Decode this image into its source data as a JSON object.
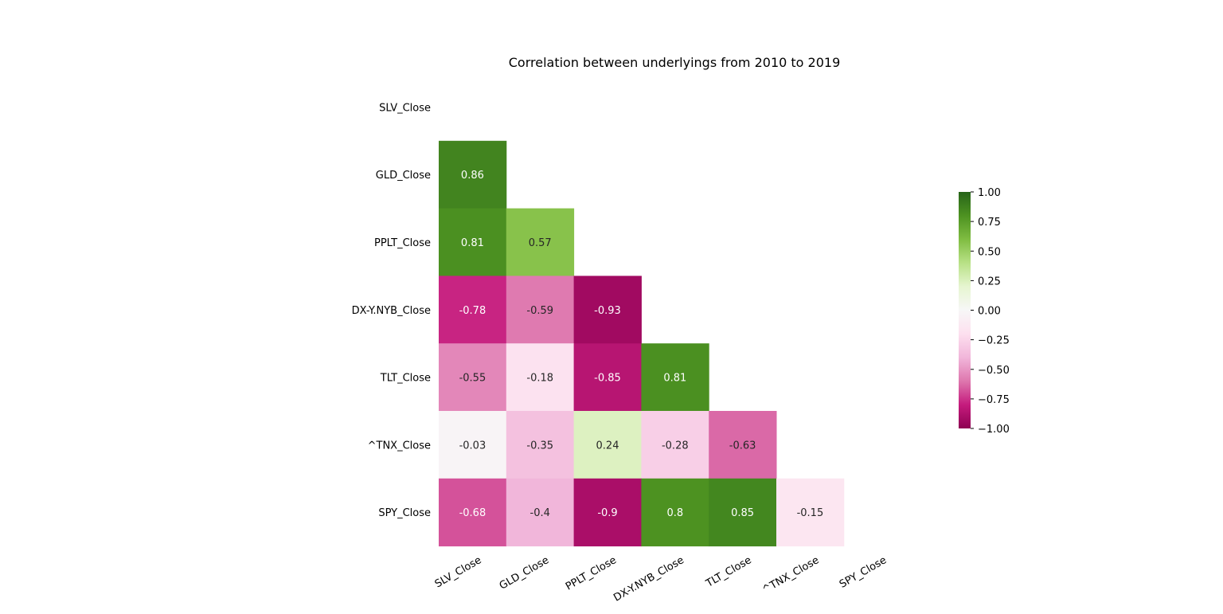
{
  "chart_data": {
    "type": "heatmap",
    "title": "Correlation between underlyings from 2010 to 2019",
    "xlabel": "",
    "ylabel": "",
    "labels": [
      "SLV_Close",
      "GLD_Close",
      "PPLT_Close",
      "DX-Y.NYB_Close",
      "TLT_Close",
      "^TNX_Close",
      "SPY_Close"
    ],
    "mask": "lower-triangle",
    "cells": [
      {
        "row": 1,
        "col": 0,
        "value": 0.86
      },
      {
        "row": 2,
        "col": 0,
        "value": 0.81
      },
      {
        "row": 2,
        "col": 1,
        "value": 0.57
      },
      {
        "row": 3,
        "col": 0,
        "value": -0.78
      },
      {
        "row": 3,
        "col": 1,
        "value": -0.59
      },
      {
        "row": 3,
        "col": 2,
        "value": -0.93
      },
      {
        "row": 4,
        "col": 0,
        "value": -0.55
      },
      {
        "row": 4,
        "col": 1,
        "value": -0.18
      },
      {
        "row": 4,
        "col": 2,
        "value": -0.85
      },
      {
        "row": 4,
        "col": 3,
        "value": 0.81
      },
      {
        "row": 5,
        "col": 0,
        "value": -0.03
      },
      {
        "row": 5,
        "col": 1,
        "value": -0.35
      },
      {
        "row": 5,
        "col": 2,
        "value": 0.24
      },
      {
        "row": 5,
        "col": 3,
        "value": -0.28
      },
      {
        "row": 5,
        "col": 4,
        "value": -0.63
      },
      {
        "row": 6,
        "col": 0,
        "value": -0.68
      },
      {
        "row": 6,
        "col": 1,
        "value": -0.4
      },
      {
        "row": 6,
        "col": 2,
        "value": -0.9
      },
      {
        "row": 6,
        "col": 3,
        "value": 0.8
      },
      {
        "row": 6,
        "col": 4,
        "value": 0.85
      },
      {
        "row": 6,
        "col": 5,
        "value": -0.15
      }
    ],
    "colormap": "PiYG",
    "vmin": -1,
    "vmax": 1,
    "colorbar": {
      "ticks": [
        1.0,
        0.75,
        0.5,
        0.25,
        0.0,
        -0.25,
        -0.5,
        -0.75,
        -1.0
      ],
      "tick_labels": [
        "1.00",
        "0.75",
        "0.50",
        "0.25",
        "0.00",
        "−0.25",
        "−0.50",
        "−0.75",
        "−1.00"
      ],
      "placement": "right"
    },
    "grid": false
  }
}
